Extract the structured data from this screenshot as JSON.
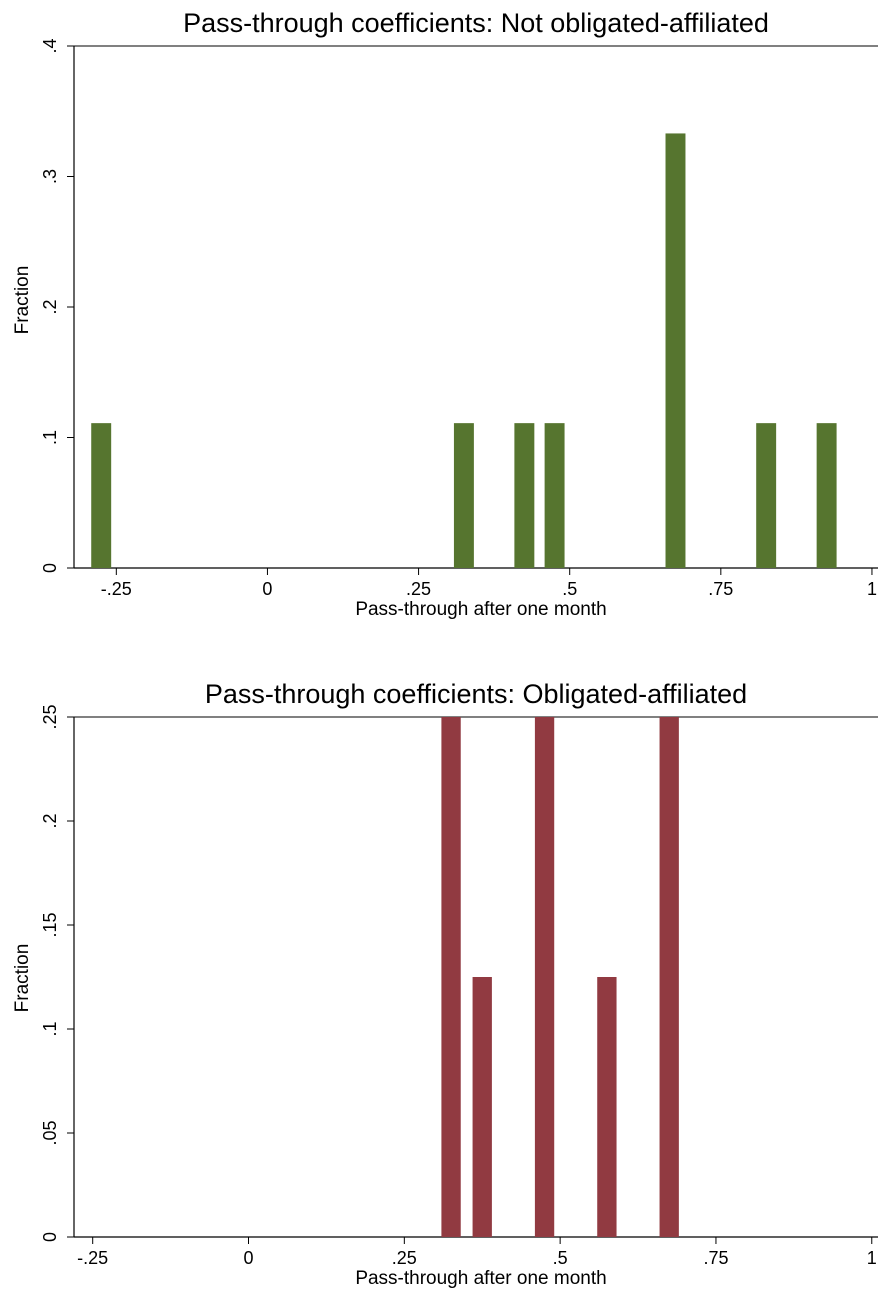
{
  "chart_data": [
    {
      "type": "bar",
      "title": "Pass-through coefficients: Not obligated-affiliated",
      "xlabel": "Pass-through after one month",
      "ylabel": "Fraction",
      "bar_color": "#56752f",
      "xlim": [
        -0.32,
        1.01
      ],
      "ylim": [
        0,
        0.4
      ],
      "xticks": [
        -0.25,
        0,
        0.25,
        0.5,
        0.75,
        1
      ],
      "xtick_labels": [
        "-.25",
        "0",
        ".25",
        ".5",
        ".75",
        "1"
      ],
      "yticks": [
        0,
        0.1,
        0.2,
        0.3,
        0.4
      ],
      "ytick_labels": [
        "0",
        ".1",
        ".2",
        ".3",
        ".4"
      ],
      "bar_width": 0.033,
      "x": [
        -0.275,
        0.325,
        0.425,
        0.475,
        0.675,
        0.825,
        0.925
      ],
      "values": [
        0.111,
        0.111,
        0.111,
        0.111,
        0.333,
        0.111,
        0.111
      ],
      "grid": false,
      "legend": "none"
    },
    {
      "type": "bar",
      "title": "Pass-through coefficients: Obligated-affiliated",
      "xlabel": "Pass-through after one month",
      "ylabel": "Fraction",
      "bar_color": "#913a41",
      "xlim": [
        -0.28,
        1.01
      ],
      "ylim": [
        0,
        0.25
      ],
      "xticks": [
        -0.25,
        0,
        0.25,
        0.5,
        0.75,
        1
      ],
      "xtick_labels": [
        "-.25",
        "0",
        ".25",
        ".5",
        ".75",
        "1"
      ],
      "yticks": [
        0,
        0.05,
        0.1,
        0.15,
        0.2,
        0.25
      ],
      "ytick_labels": [
        "0",
        ".05",
        ".1",
        ".15",
        ".2",
        ".25"
      ],
      "bar_width": 0.031,
      "x": [
        0.325,
        0.375,
        0.475,
        0.575,
        0.675
      ],
      "values": [
        0.25,
        0.125,
        0.25,
        0.125,
        0.25
      ],
      "grid": false,
      "legend": "none"
    }
  ]
}
